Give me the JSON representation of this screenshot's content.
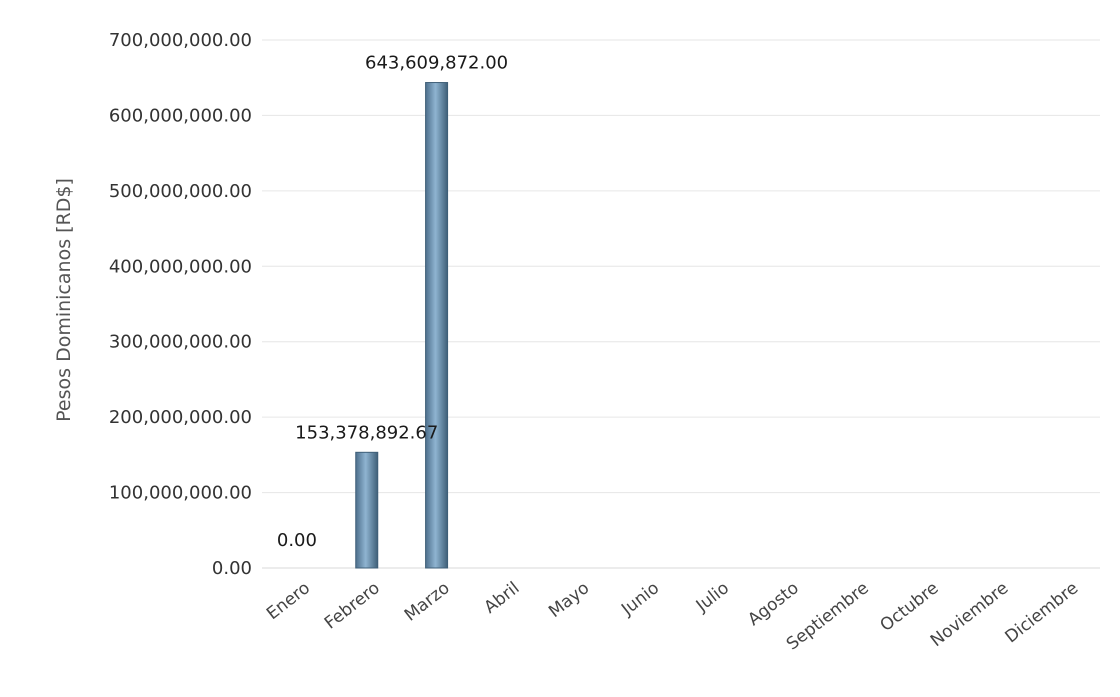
{
  "chart_data": {
    "type": "bar",
    "title": "",
    "xlabel": "",
    "ylabel": "Pesos Dominicanos [RD$]",
    "categories": [
      "Enero",
      "Febrero",
      "Marzo",
      "Abril",
      "Mayo",
      "Junio",
      "Julio",
      "Agosto",
      "Septiembre",
      "Octubre",
      "Noviembre",
      "Diciembre"
    ],
    "values": [
      0,
      153378892.67,
      643609872.0,
      null,
      null,
      null,
      null,
      null,
      null,
      null,
      null,
      null
    ],
    "data_labels": [
      "0.00",
      "153,378,892.67",
      "643,609,872.00",
      "",
      "",
      "",
      "",
      "",
      "",
      "",
      "",
      ""
    ],
    "ylim": [
      0,
      700000000
    ],
    "yticks": [
      0,
      100000000,
      200000000,
      300000000,
      400000000,
      500000000,
      600000000,
      700000000
    ],
    "ytick_labels": [
      "0.00",
      "100,000,000.00",
      "200,000,000.00",
      "300,000,000.00",
      "400,000,000.00",
      "500,000,000.00",
      "600,000,000.00",
      "700,000,000.00"
    ],
    "grid": true,
    "legend": "none",
    "colors": {
      "bar": "#7fa6c4",
      "bar_edge": "#3f5f78",
      "grid": "#e6e6e6"
    }
  }
}
